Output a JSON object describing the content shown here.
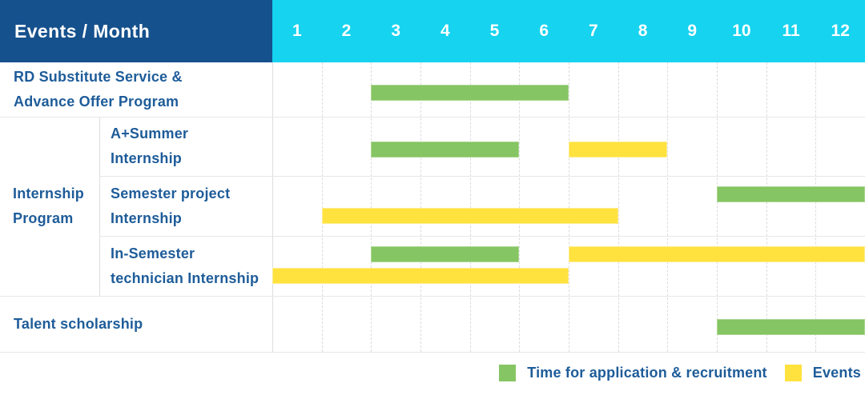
{
  "header": {
    "title": "Events / Month",
    "months": [
      "1",
      "2",
      "3",
      "4",
      "5",
      "6",
      "7",
      "8",
      "9",
      "10",
      "11",
      "12"
    ]
  },
  "group_cell": {
    "id": "internship-program",
    "label": "Internship Program",
    "label_lines": [
      "Internship",
      "Program"
    ]
  },
  "rows": [
    {
      "id": "rd-substitute",
      "label": "RD Substitute Service & Advance Offer Program",
      "label_lines": [
        "RD Substitute Service &",
        "Advance Offer Program"
      ],
      "grouped": false,
      "bars": [
        {
          "kind": "application",
          "start": 3,
          "end": 7,
          "lane": "center"
        }
      ]
    },
    {
      "id": "a-summer-internship",
      "label": "A+Summer Internship",
      "label_lines": [
        "A+Summer",
        "Internship"
      ],
      "grouped": true,
      "bars": [
        {
          "kind": "application",
          "start": 3,
          "end": 6,
          "lane": "center"
        },
        {
          "kind": "event",
          "start": 7,
          "end": 9,
          "lane": "center"
        }
      ]
    },
    {
      "id": "semester-project-internship",
      "label": "Semester project Internship",
      "label_lines": [
        "Semester project",
        "Internship"
      ],
      "grouped": true,
      "bars": [
        {
          "kind": "application",
          "start": 10,
          "end": 13,
          "lane": "upper"
        },
        {
          "kind": "event",
          "start": 2,
          "end": 8,
          "lane": "lower"
        }
      ]
    },
    {
      "id": "in-semester-technician-internship",
      "label": "In-Semester technician Internship",
      "label_lines": [
        "In-Semester",
        "technician Internship"
      ],
      "grouped": true,
      "bars": [
        {
          "kind": "application",
          "start": 3,
          "end": 6,
          "lane": "upper"
        },
        {
          "kind": "event",
          "start": 7,
          "end": 13,
          "lane": "upper"
        },
        {
          "kind": "event",
          "start": 1,
          "end": 7,
          "lane": "lower"
        }
      ]
    },
    {
      "id": "talent-scholarship",
      "label": "Talent scholarship",
      "label_lines": [
        "Talent scholarship"
      ],
      "grouped": false,
      "bars": [
        {
          "kind": "application",
          "start": 10,
          "end": 13,
          "lane": "center"
        }
      ]
    }
  ],
  "legend": [
    {
      "kind": "application",
      "label": "Time for application & recruitment"
    },
    {
      "kind": "event",
      "label": "Events"
    }
  ],
  "colors": {
    "header_bg": "#15518d",
    "month_header_bg": "#16d3ef",
    "application_green": "#85c563",
    "event_yellow": "#ffe23e",
    "label_blue": "#1e5c99",
    "grid_line": "#dcdcdc",
    "row_line": "#e7e7e7",
    "header_text": "#ffffff"
  },
  "chart_data": {
    "type": "gantt",
    "title": "Events / Month",
    "x_axis": {
      "label": "Month",
      "ticks": [
        1,
        2,
        3,
        4,
        5,
        6,
        7,
        8,
        9,
        10,
        11,
        12
      ],
      "range": [
        1,
        12
      ]
    },
    "grid": true,
    "legend_position": "bottom-right",
    "series_legend": [
      "Time for application & recruitment",
      "Events"
    ],
    "tasks": [
      {
        "row": "RD Substitute Service & Advance Offer Program",
        "series": "Time for application & recruitment",
        "start_month": 3,
        "end_month": 6
      },
      {
        "row": "A+Summer Internship",
        "series": "Time for application & recruitment",
        "start_month": 3,
        "end_month": 5
      },
      {
        "row": "A+Summer Internship",
        "series": "Events",
        "start_month": 7,
        "end_month": 8
      },
      {
        "row": "Semester project Internship",
        "series": "Time for application & recruitment",
        "start_month": 10,
        "end_month": 12
      },
      {
        "row": "Semester project Internship",
        "series": "Events",
        "start_month": 2,
        "end_month": 7
      },
      {
        "row": "In-Semester technician Internship",
        "series": "Time for application & recruitment",
        "start_month": 3,
        "end_month": 5
      },
      {
        "row": "In-Semester technician Internship",
        "series": "Events",
        "start_month": 7,
        "end_month": 12
      },
      {
        "row": "In-Semester technician Internship",
        "series": "Events",
        "start_month": 1,
        "end_month": 6
      },
      {
        "row": "Talent scholarship",
        "series": "Time for application & recruitment",
        "start_month": 10,
        "end_month": 12
      }
    ]
  }
}
